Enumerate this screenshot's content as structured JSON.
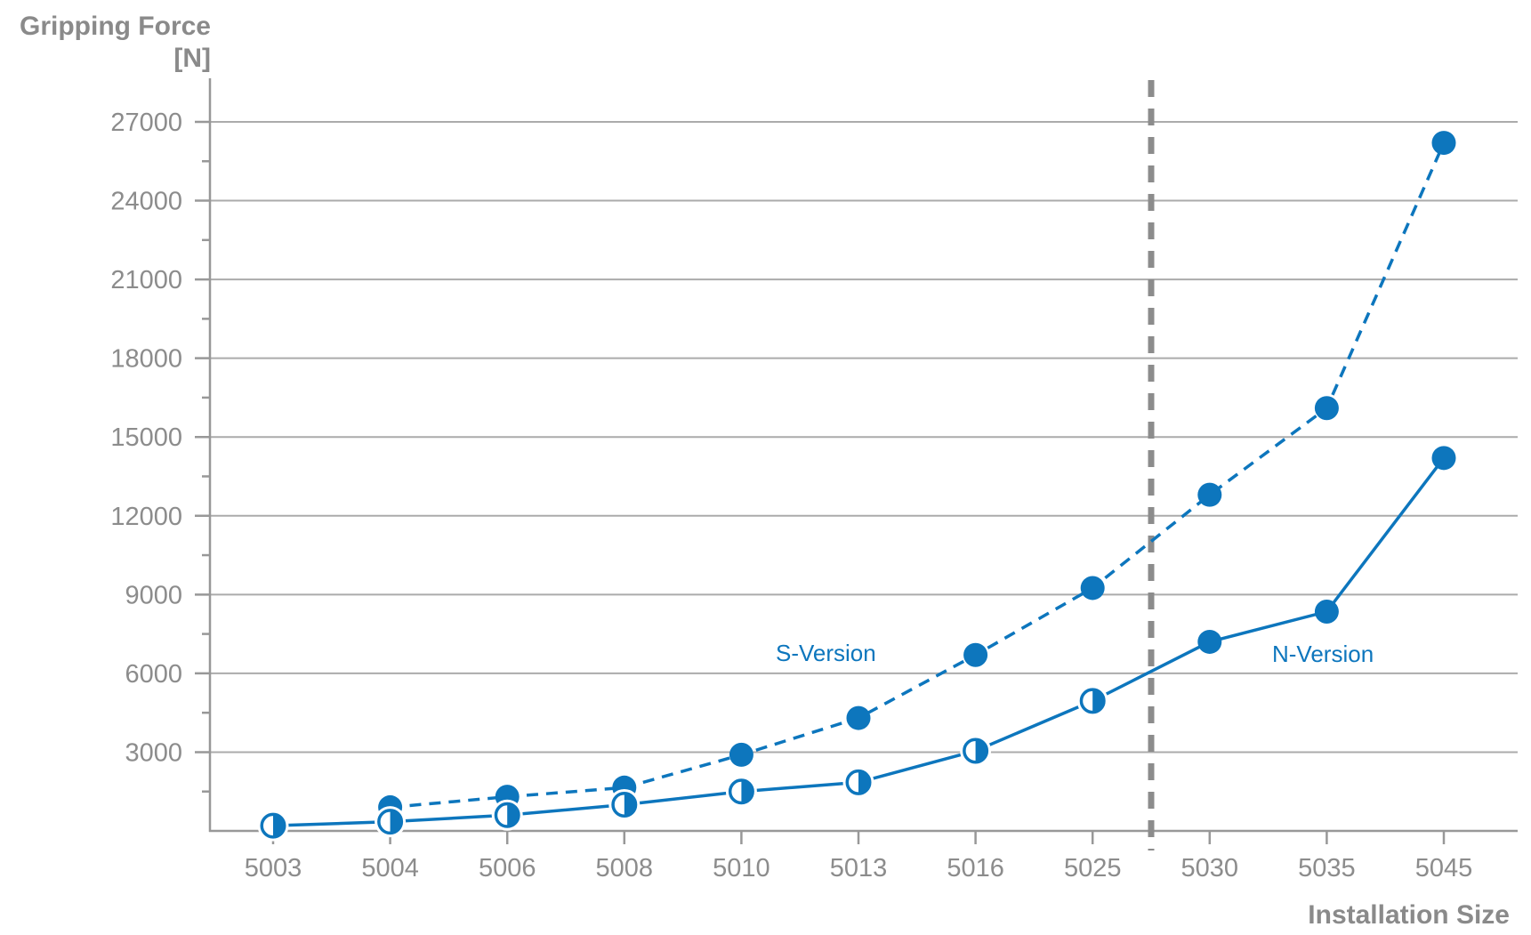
{
  "chart_data": {
    "type": "line",
    "title": "",
    "y_axis": {
      "title_line1": "Gripping Force",
      "title_line2": "[N]",
      "min": 0,
      "max": 28500,
      "major_step": 3000,
      "minor_step": 1500,
      "major_tick_labels": [
        "3000",
        "6000",
        "9000",
        "12000",
        "15000",
        "18000",
        "21000",
        "24000",
        "27000"
      ]
    },
    "x_axis": {
      "title": "Installation Size",
      "categories": [
        "5003",
        "5004",
        "5006",
        "5008",
        "5010",
        "5013",
        "5016",
        "5025",
        "5030",
        "5035",
        "5045"
      ]
    },
    "separator": {
      "between_left": "5025",
      "between_right": "5030"
    },
    "series": [
      {
        "name": "S-Version",
        "line_style": "dashed",
        "color": "#0d76bd",
        "values": [
          null,
          900,
          1300,
          1650,
          2900,
          4300,
          6700,
          9250,
          12800,
          16100,
          26200
        ],
        "markers": [
          null,
          "filled",
          "filled",
          "filled",
          "filled",
          "filled",
          "filled",
          "filled",
          "filled",
          "filled",
          "filled"
        ]
      },
      {
        "name": "N-Version",
        "line_style": "solid",
        "color": "#0d76bd",
        "values": [
          200,
          350,
          600,
          1000,
          1500,
          1850,
          3050,
          4950,
          7200,
          8350,
          14200
        ],
        "markers": [
          "half",
          "half",
          "half",
          "half",
          "half",
          "half",
          "half",
          "half",
          "filled",
          "filled",
          "filled"
        ]
      }
    ],
    "labels": {
      "s_version": "S-Version",
      "n_version": "N-Version"
    },
    "legend_position": "inline-annotations",
    "grid": "horizontal-major",
    "colors": {
      "series_blue": "#0d76bd",
      "grid_gray": "#ababab",
      "axis_gray": "#989898",
      "tick_text_gray": "#8c8c8c",
      "title_gray": "#8a8a8a",
      "separator_gray": "#8c8c8c"
    }
  }
}
